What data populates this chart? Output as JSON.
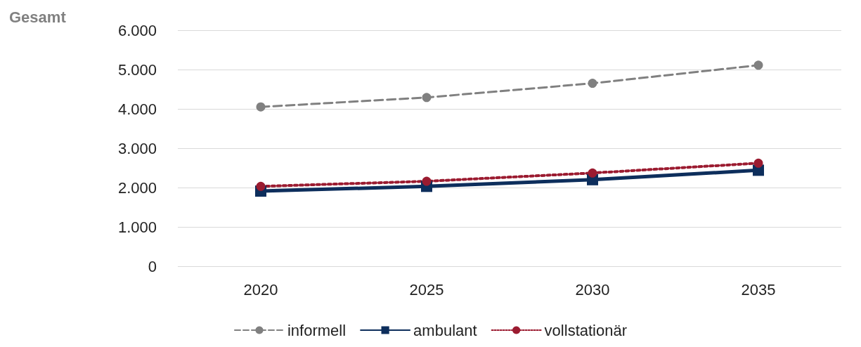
{
  "chart_data": {
    "type": "line",
    "title": "Gesamt",
    "categories": [
      "2020",
      "2025",
      "2030",
      "2035"
    ],
    "series": [
      {
        "name": "informell",
        "color": "#808080",
        "values": [
          4050,
          4290,
          4650,
          5110
        ],
        "marker": "circle",
        "line_style": "dashed"
      },
      {
        "name": "ambulant",
        "color": "#0d2e5c",
        "values": [
          1910,
          2030,
          2200,
          2440
        ],
        "marker": "square",
        "line_style": "solid"
      },
      {
        "name": "vollstationär",
        "color": "#9b1b30",
        "values": [
          2030,
          2160,
          2370,
          2620
        ],
        "marker": "circle",
        "line_style": "dotted"
      }
    ],
    "ylim": [
      0,
      6000
    ],
    "yticks": [
      0,
      {
        "value": 1000,
        "label": "1.000"
      },
      {
        "value": 2000,
        "label": "2.000"
      },
      {
        "value": 3000,
        "label": "3.000"
      },
      {
        "value": 4000,
        "label": "4.000"
      },
      {
        "value": 5000,
        "label": "5.000"
      },
      {
        "value": 6000,
        "label": "6.000"
      }
    ],
    "grid": "y",
    "legend": "bottom"
  }
}
